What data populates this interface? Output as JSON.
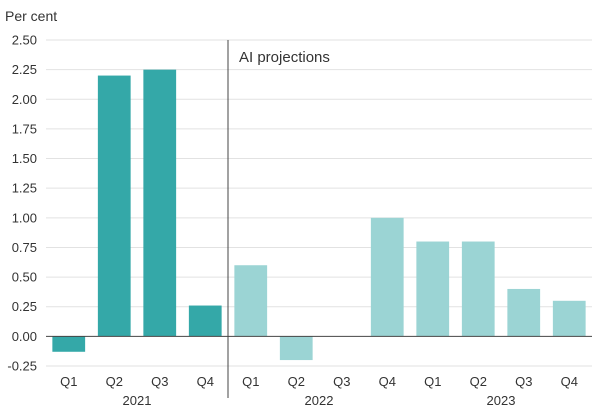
{
  "chart_data": {
    "type": "bar",
    "ylabel": "Per cent",
    "ylim": [
      -0.25,
      2.5
    ],
    "yticks": [
      "2.50",
      "2.25",
      "2.00",
      "1.75",
      "1.50",
      "1.25",
      "1.00",
      "0.75",
      "0.50",
      "0.25",
      "0.00",
      "-0.25"
    ],
    "grid": true,
    "categories": [
      "Q1",
      "Q2",
      "Q3",
      "Q4",
      "Q1",
      "Q2",
      "Q3",
      "Q4",
      "Q1",
      "Q2",
      "Q3",
      "Q4"
    ],
    "years": [
      "2021",
      "2022",
      "2023"
    ],
    "values": [
      -0.13,
      2.2,
      2.25,
      0.26,
      0.6,
      -0.2,
      0.0,
      1.0,
      0.8,
      0.8,
      0.4,
      0.3
    ],
    "projected": [
      false,
      false,
      false,
      false,
      true,
      true,
      true,
      true,
      true,
      true,
      true,
      true
    ],
    "annotation": "AI projections",
    "colors": {
      "actual": "#34a8a8",
      "projected": "#9bd4d4"
    }
  }
}
